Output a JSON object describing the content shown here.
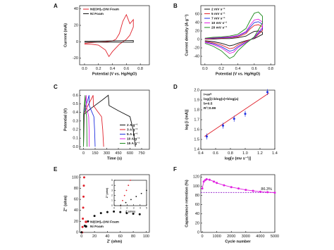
{
  "chart_data": [
    {
      "label": "A",
      "type": "line",
      "xlabel": "Potential (V vs. Hg/HgO)",
      "ylabel": "Current (mA)",
      "xlim": [
        -0.07,
        0.93
      ],
      "ylim": [
        -28,
        44
      ],
      "xticks": [
        {
          "value": 0,
          "label": "0.0"
        },
        0.2,
        0.4,
        0.6,
        0.8
      ],
      "yticks": [
        -20,
        0,
        20,
        40
      ],
      "legend": "upper left",
      "series": [
        {
          "name": "Ni(OH)₂@Ni Foam",
          "color": "#e0202a",
          "x": [
            0,
            0.1,
            0.2,
            0.3,
            0.4,
            0.45,
            0.5,
            0.55,
            0.6,
            0.65,
            0.7,
            0.7,
            0.65,
            0.6,
            0.5,
            0.4,
            0.35,
            0.3,
            0.2,
            0.1,
            0
          ],
          "values": [
            -2,
            -1,
            -0.5,
            0,
            1,
            3,
            10,
            25,
            33,
            22,
            27,
            18,
            8,
            3,
            -3,
            -12,
            -18,
            -10,
            -4,
            -3,
            -3
          ]
        },
        {
          "name": "Ni Foam",
          "color": "#111111",
          "x": [
            0,
            0.7,
            0.7,
            0
          ],
          "values": [
            0.5,
            1.5,
            -0.5,
            -0.5
          ]
        }
      ]
    },
    {
      "label": "B",
      "type": "line",
      "xlabel": "Potential (V vs. Hg/HgO)",
      "ylabel": "Current density (A g⁻¹)",
      "xlim": [
        -0.05,
        0.85
      ],
      "ylim": [
        -60,
        80
      ],
      "xticks": [
        {
          "value": 0,
          "label": "0.0"
        },
        0.2,
        0.4,
        0.6,
        0.8
      ],
      "yticks": [
        -40,
        -20,
        0,
        20,
        40,
        60
      ],
      "legend": "upper left",
      "x": [
        0,
        0.1,
        0.2,
        0.3,
        0.4,
        0.5,
        0.55,
        0.6,
        0.65,
        0.7,
        0.7,
        0.6,
        0.5,
        0.4,
        0.35,
        0.3,
        0.2,
        0.1,
        0
      ],
      "series": [
        {
          "name": "2 mV s⁻¹",
          "color": "#111111",
          "values": [
            1,
            1,
            2,
            2,
            4,
            8,
            14,
            19,
            20,
            17,
            12,
            2,
            -3,
            -9,
            -13,
            -15,
            -9,
            -5,
            -3
          ]
        },
        {
          "name": "5 mV s⁻¹",
          "color": "#e0202a",
          "values": [
            1,
            2,
            3,
            4,
            6,
            14,
            25,
            33,
            35,
            30,
            21,
            3,
            -4,
            -13,
            -20,
            -22,
            -13,
            -8,
            -4
          ]
        },
        {
          "name": "7 mV s⁻¹",
          "color": "#2030e0",
          "values": [
            2,
            3,
            4,
            5,
            8,
            17,
            29,
            40,
            42,
            36,
            25,
            4,
            -6,
            -17,
            -25,
            -28,
            -17,
            -10,
            -6
          ]
        },
        {
          "name": "10 mV s⁻¹",
          "color": "#e020e0",
          "values": [
            2,
            4,
            5,
            6,
            9,
            19,
            34,
            46,
            48,
            41,
            29,
            5,
            -7,
            -20,
            -30,
            -33,
            -20,
            -12,
            -7
          ]
        },
        {
          "name": "20 mV s⁻¹",
          "color": "#1a8a1a",
          "values": [
            3,
            5,
            6,
            8,
            12,
            26,
            45,
            62,
            65,
            55,
            39,
            6,
            -9,
            -27,
            -40,
            -45,
            -27,
            -16,
            -9
          ]
        }
      ]
    },
    {
      "label": "C",
      "type": "line",
      "xlabel": "Time (s)",
      "ylabel": "Potential (V)",
      "xlim": [
        -50,
        850
      ],
      "ylim": [
        -0.03,
        0.66
      ],
      "xticks": [
        0,
        150,
        300,
        450,
        600,
        750
      ],
      "yticks": [
        {
          "value": 0,
          "label": "0.0"
        },
        0.1,
        0.2,
        0.3,
        0.4,
        0.5,
        0.6
      ],
      "legend": "lower right",
      "series": [
        {
          "name": "2 A g⁻¹",
          "color": "#111111",
          "x": [
            0,
            10,
            100,
            250,
            320,
            330,
            450,
            600,
            640,
            670
          ],
          "values": [
            0,
            0.38,
            0.45,
            0.55,
            0.6,
            0.48,
            0.42,
            0.35,
            0.2,
            0
          ]
        },
        {
          "name": "3 A g⁻¹",
          "color": "#e0202a",
          "x": [
            0,
            4,
            39,
            97,
            124,
            128,
            175,
            233,
            248,
            260
          ],
          "values": [
            0,
            0.38,
            0.45,
            0.55,
            0.6,
            0.48,
            0.42,
            0.35,
            0.2,
            0
          ]
        },
        {
          "name": "5 A g⁻¹",
          "color": "#2030e0",
          "x": [
            0,
            2,
            22,
            56,
            72,
            74,
            101,
            134,
            143,
            150
          ],
          "values": [
            0,
            0.38,
            0.45,
            0.55,
            0.6,
            0.48,
            0.42,
            0.35,
            0.2,
            0
          ]
        },
        {
          "name": "10 A g⁻¹",
          "color": "#e020e0",
          "x": [
            0,
            1,
            11,
            28,
            36,
            37,
            50,
            67,
            72,
            75
          ],
          "values": [
            0,
            0.38,
            0.45,
            0.55,
            0.6,
            0.48,
            0.42,
            0.35,
            0.2,
            0
          ]
        },
        {
          "name": "15 A g⁻¹",
          "color": "#1a8a1a",
          "x": [
            0,
            1,
            7,
            17,
            21,
            22,
            30,
            40,
            43,
            45
          ],
          "values": [
            0,
            0.38,
            0.45,
            0.55,
            0.6,
            0.48,
            0.42,
            0.35,
            0.2,
            0
          ]
        }
      ]
    },
    {
      "label": "D",
      "type": "scatter",
      "xlabel": "log[ν (mv s⁻¹)]",
      "ylabel": "log [i (mA)]",
      "xlim": [
        0.4,
        1.4
      ],
      "ylim": [
        1.4,
        2.0
      ],
      "xticks": [
        0.4,
        0.6,
        0.8,
        {
          "value": 1,
          "label": "1.0"
        },
        1.2,
        1.4
      ],
      "yticks": [
        1.4,
        1.5,
        1.6,
        1.7,
        1.8,
        1.9,
        {
          "value": 2,
          "label": "2.0"
        }
      ],
      "annotations": [
        {
          "text": "i=aνᵇ",
          "color": "#111111"
        },
        {
          "text": "log(i)=blog(ν)+blog(a)",
          "color": "#111111"
        },
        {
          "text": "b=0.5",
          "color": "#e0202a"
        },
        {
          "text": "R²=0.99",
          "color": "#e0202a"
        }
      ],
      "series": [
        {
          "color": "#e0202a",
          "style": "line",
          "x": [
            0.45,
            1.32
          ],
          "values": [
            1.53,
            1.97
          ]
        },
        {
          "color": "#2030e0",
          "style": "points",
          "x": [
            0.48,
            0.7,
            0.85,
            1.0,
            1.3
          ],
          "values": [
            1.53,
            1.64,
            1.71,
            1.76,
            1.98
          ],
          "errors": [
            0.03,
            0.03,
            0.03,
            0.03,
            0.03
          ]
        }
      ]
    },
    {
      "label": "E",
      "type": "line",
      "xlabel": "Z' (ohm)",
      "ylabel": "Z'' (ohm)",
      "xlim": [
        -3,
        105
      ],
      "ylim": [
        0,
        105
      ],
      "xticks": [
        0,
        20,
        40,
        60,
        80,
        100
      ],
      "yticks": [
        0,
        20,
        40,
        60,
        80,
        100
      ],
      "legend": "lower left",
      "series": [
        {
          "name": "Ni(OH)₂@Ni Foam",
          "color": "#e0202a",
          "style": "points",
          "x": [
            1,
            1.5,
            2,
            2.5,
            3,
            3.5,
            4
          ],
          "values": [
            0,
            10,
            25,
            45,
            65,
            85,
            100
          ]
        },
        {
          "name": "Ni Foam",
          "color": "#111111",
          "style": "points",
          "x": [
            0,
            5,
            10,
            20,
            30,
            40,
            50,
            60,
            70,
            80,
            90
          ],
          "values": [
            0,
            12,
            20,
            30,
            35,
            37,
            38,
            37,
            35,
            34,
            33
          ]
        }
      ]
    },
    {
      "label": "F",
      "type": "line",
      "xlabel": "Cycle number",
      "ylabel": "Capacitance retention (%)",
      "xlim": [
        -100,
        5000
      ],
      "ylim": [
        0,
        125
      ],
      "xticks": [
        0,
        1000,
        2000,
        3000,
        4000,
        5000
      ],
      "yticks": [
        0,
        20,
        40,
        60,
        80,
        100,
        120
      ],
      "reference": {
        "value": 86.3,
        "label": "86.3%",
        "color": "#9b30d0"
      },
      "series": [
        {
          "color": "#e020e0",
          "style": "line+points",
          "x": [
            0,
            100,
            200,
            300,
            500,
            800,
            1000,
            1500,
            2000,
            2500,
            3000,
            3500,
            4000,
            4500,
            5000
          ],
          "values": [
            95,
            110,
            113,
            115,
            114,
            110,
            107,
            102,
            98,
            95,
            92,
            90,
            88,
            87,
            86
          ]
        }
      ]
    },
    {
      "type": "line",
      "xlabel": "Z' (ohm)",
      "ylabel": "Z'' (ohm)",
      "xlim": [
        0,
        5
      ],
      "ylim": [
        0,
        5
      ],
      "xticks": [
        0,
        1,
        2,
        3,
        4,
        5
      ],
      "yticks": [
        0,
        1,
        2,
        3,
        4,
        5
      ],
      "series": [
        {
          "color": "#e0202a",
          "style": "points",
          "x": [
            1,
            1.3,
            1.6,
            1.9,
            2.2,
            2.5
          ],
          "values": [
            0,
            1,
            2,
            3,
            4,
            5
          ]
        },
        {
          "color": "#111111",
          "style": "points",
          "x": [
            1,
            1.8,
            2.6,
            3.4,
            4.2,
            5
          ],
          "values": [
            0,
            0.6,
            1.2,
            1.8,
            2.4,
            3
          ]
        }
      ]
    }
  ]
}
